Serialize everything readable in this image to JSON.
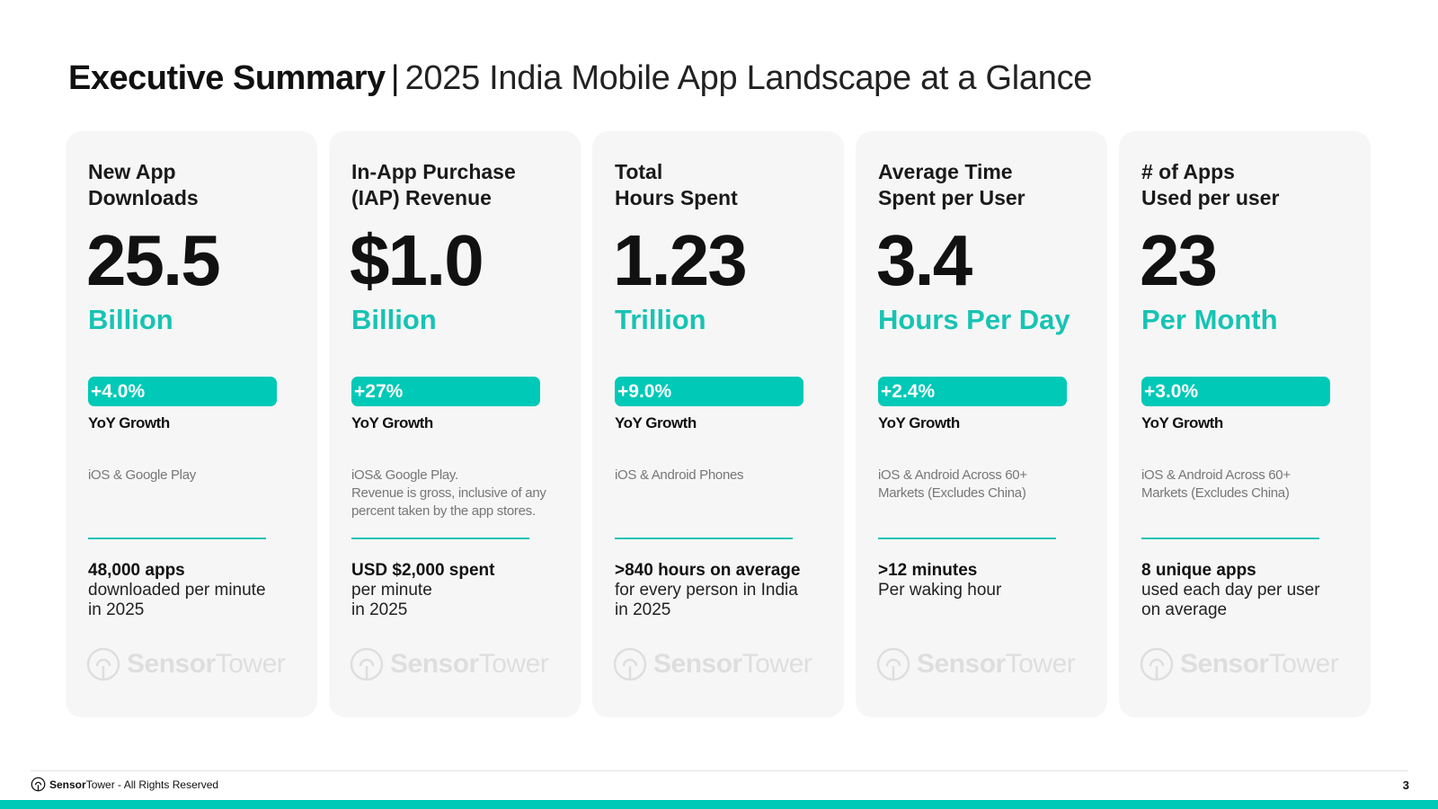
{
  "header": {
    "title_bold": "Executive Summary",
    "separator": "|",
    "title_rest": "2025 India Mobile App Landscape at a Glance"
  },
  "cards": [
    {
      "heading": "New App\nDownloads",
      "value": "25.5",
      "unit": "Billion",
      "growth": "+4.0%",
      "growth_label": "YoY Growth",
      "note": "iOS & Google Play",
      "fact_bold": "48,000 apps",
      "fact_rest": "downloaded per minute\nin 2025"
    },
    {
      "heading": "In-App Purchase\n(IAP) Revenue",
      "value": "$1.0",
      "unit": "Billion",
      "growth": "+27%",
      "growth_label": "YoY Growth",
      "note": "iOS& Google Play.\nRevenue is gross, inclusive of any percent taken by the app stores.",
      "fact_bold": "USD $2,000 spent",
      "fact_rest": "per minute\nin 2025"
    },
    {
      "heading": "Total\nHours Spent",
      "value": "1.23",
      "unit": "Trillion",
      "growth": "+9.0%",
      "growth_label": "YoY Growth",
      "note": "iOS & Android Phones",
      "fact_bold": ">840 hours on average",
      "fact_rest": "for every person in India\nin 2025"
    },
    {
      "heading": "Average Time\nSpent per User",
      "value": "3.4",
      "unit": "Hours Per Day",
      "growth": "+2.4%",
      "growth_label": "YoY Growth",
      "note": "iOS & Android Across 60+\nMarkets (Excludes China)",
      "fact_bold": ">12 minutes",
      "fact_rest": "Per waking hour"
    },
    {
      "heading": "# of Apps\nUsed per user",
      "value": "23",
      "unit": "Per Month",
      "growth": "+3.0%",
      "growth_label": "YoY Growth",
      "note": "iOS & Android Across 60+\nMarkets (Excludes China)",
      "fact_bold": "8 unique apps",
      "fact_rest": "used each day per user\non average"
    }
  ],
  "watermark": {
    "brand_bold": "Sensor",
    "brand_light": "Tower"
  },
  "footer": {
    "brand_bold": "Sensor",
    "brand_light": "Tower",
    "rights": " - All Rights Reserved",
    "page_number": "3"
  },
  "colors": {
    "accent": "#00c9b7",
    "accent_text": "#18c3b3",
    "card_bg": "#f6f6f6"
  },
  "icons": {
    "brand": "sensor-tower-logo-icon"
  }
}
